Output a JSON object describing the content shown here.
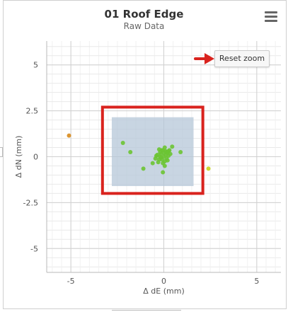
{
  "header": {
    "title": "01 Roof Edge",
    "subtitle": "Raw Data",
    "menu_icon": "hamburger-icon",
    "reset_label": "Reset zoom"
  },
  "colors": {
    "band_fill": "#b5c7d8",
    "highlight_border": "#d9231e",
    "arrow": "#d9231e",
    "series_main": "#6cc433",
    "series_outlier_left": "#d88b1c",
    "series_outlier_right": "#c8d41a"
  },
  "chart_data": {
    "type": "scatter",
    "title": "01 Roof Edge",
    "subtitle": "Raw Data",
    "xlabel": "Δ dE  (mm)",
    "ylabel": "Δ dN  (mm)",
    "xlim": [
      -6.3,
      6.3
    ],
    "ylim": [
      -6.3,
      6.3
    ],
    "x_ticks": [
      -5,
      0,
      5
    ],
    "x_tick_labels": [
      "-5",
      "0",
      "5"
    ],
    "y_ticks": [
      5,
      2.5,
      0,
      -2.5,
      -5
    ],
    "y_tick_labels": [
      "5",
      "2.5",
      "0",
      "-2.5",
      "-5"
    ],
    "grid": true,
    "band": {
      "x": [
        -2.8,
        1.6
      ],
      "y": [
        -1.6,
        2.15
      ]
    },
    "highlight_box": {
      "x": [
        -3.3,
        2.1
      ],
      "y": [
        -2.0,
        2.7
      ]
    },
    "series": [
      {
        "color": "#6cc433",
        "points": [
          [
            -2.2,
            0.75
          ],
          [
            -1.8,
            0.25
          ],
          [
            -1.1,
            -0.65
          ],
          [
            -0.6,
            -0.35
          ],
          [
            0.9,
            0.25
          ],
          [
            -0.05,
            -0.85
          ],
          [
            -0.4,
            0.05
          ],
          [
            -0.25,
            -0.15
          ],
          [
            -0.15,
            0.15
          ],
          [
            -0.1,
            0.35
          ],
          [
            0.05,
            0.5
          ],
          [
            0.2,
            0.2
          ],
          [
            0.15,
            -0.1
          ],
          [
            0.0,
            0.0
          ],
          [
            -0.3,
            -0.3
          ],
          [
            0.1,
            0.3
          ],
          [
            -0.2,
            0.25
          ],
          [
            0.25,
            0.05
          ],
          [
            -0.05,
            -0.35
          ],
          [
            0.05,
            -0.5
          ],
          [
            -0.35,
            0.1
          ],
          [
            0.3,
            0.35
          ],
          [
            -0.15,
            -0.05
          ],
          [
            0.1,
            0.1
          ],
          [
            0.0,
            0.2
          ],
          [
            -0.25,
            0.4
          ],
          [
            0.2,
            -0.2
          ],
          [
            -0.1,
            -0.15
          ],
          [
            0.35,
            0.15
          ],
          [
            -0.45,
            -0.1
          ],
          [
            0.15,
            0.25
          ],
          [
            -0.2,
            0.0
          ],
          [
            0.05,
            -0.25
          ],
          [
            0.45,
            0.55
          ],
          [
            -0.05,
            0.35
          ],
          [
            0.25,
            0.3
          ]
        ]
      },
      {
        "color": "#d88b1c",
        "points": [
          [
            -5.1,
            1.15
          ]
        ]
      },
      {
        "color": "#c8d41a",
        "points": [
          [
            2.4,
            -0.65
          ]
        ]
      }
    ]
  }
}
